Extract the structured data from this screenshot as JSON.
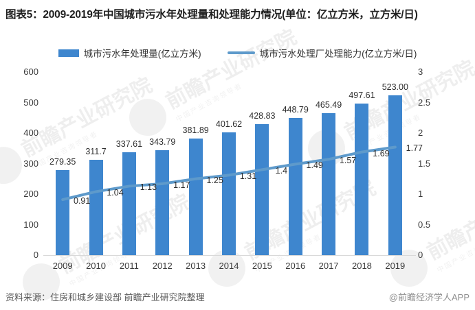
{
  "title": "图表5：2009-2019年中国城市污水年处理量和处理能力情况(单位：亿立方米，立方米/日)",
  "legend": {
    "items": [
      {
        "label": "城市污水年处理量(亿立方米)",
        "type": "bar",
        "color": "#3e86ce"
      },
      {
        "label": "城市污水处理厂处理能力(亿立方米/日)",
        "type": "line",
        "color": "#5e9acb"
      }
    ]
  },
  "chart_data": {
    "type": "bar",
    "categories": [
      "2009",
      "2010",
      "2011",
      "2012",
      "2013",
      "2014",
      "2015",
      "2016",
      "2017",
      "2018",
      "2019"
    ],
    "series": [
      {
        "name": "城市污水年处理量(亿立方米)",
        "type": "bar",
        "axis": "left",
        "color": "#3e86ce",
        "values": [
          279.35,
          311.7,
          337.61,
          343.79,
          381.89,
          401.62,
          428.83,
          448.79,
          465.49,
          497.61,
          523.0
        ],
        "labels": [
          "279.35",
          "311.7",
          "337.61",
          "343.79",
          "381.89",
          "401.62",
          "428.83",
          "448.79",
          "465.49",
          "497.61",
          "523.00"
        ]
      },
      {
        "name": "城市污水处理厂处理能力(亿立方米/日)",
        "type": "line",
        "axis": "right",
        "color": "#5e9acb",
        "values": [
          0.91,
          1.04,
          1.13,
          1.17,
          1.25,
          1.31,
          1.4,
          1.49,
          1.57,
          1.69,
          1.77
        ],
        "labels": [
          "0.91",
          "1.04",
          "1.13",
          "1.17",
          "1.25",
          "1.31",
          "1.4",
          "1.49",
          "1.57",
          "1.69",
          "1.77"
        ]
      }
    ],
    "y_left": {
      "min": 0,
      "max": 600,
      "ticks": [
        0,
        100,
        200,
        300,
        400,
        500,
        600
      ]
    },
    "y_right": {
      "min": 0,
      "max": 3,
      "ticks": [
        0,
        0.5,
        1,
        1.5,
        2,
        2.5,
        3
      ]
    },
    "grid": false,
    "legend_position": "top"
  },
  "footer": {
    "source": "资料来源：住房和城乡建设部 前瞻产业研究院整理",
    "credit": "@前瞻经济学人APP"
  },
  "watermark": {
    "main": "前瞻产业研究院",
    "sub": "中国产业咨询领导者",
    "icon": "qianzhan-logo-circle-icon"
  }
}
